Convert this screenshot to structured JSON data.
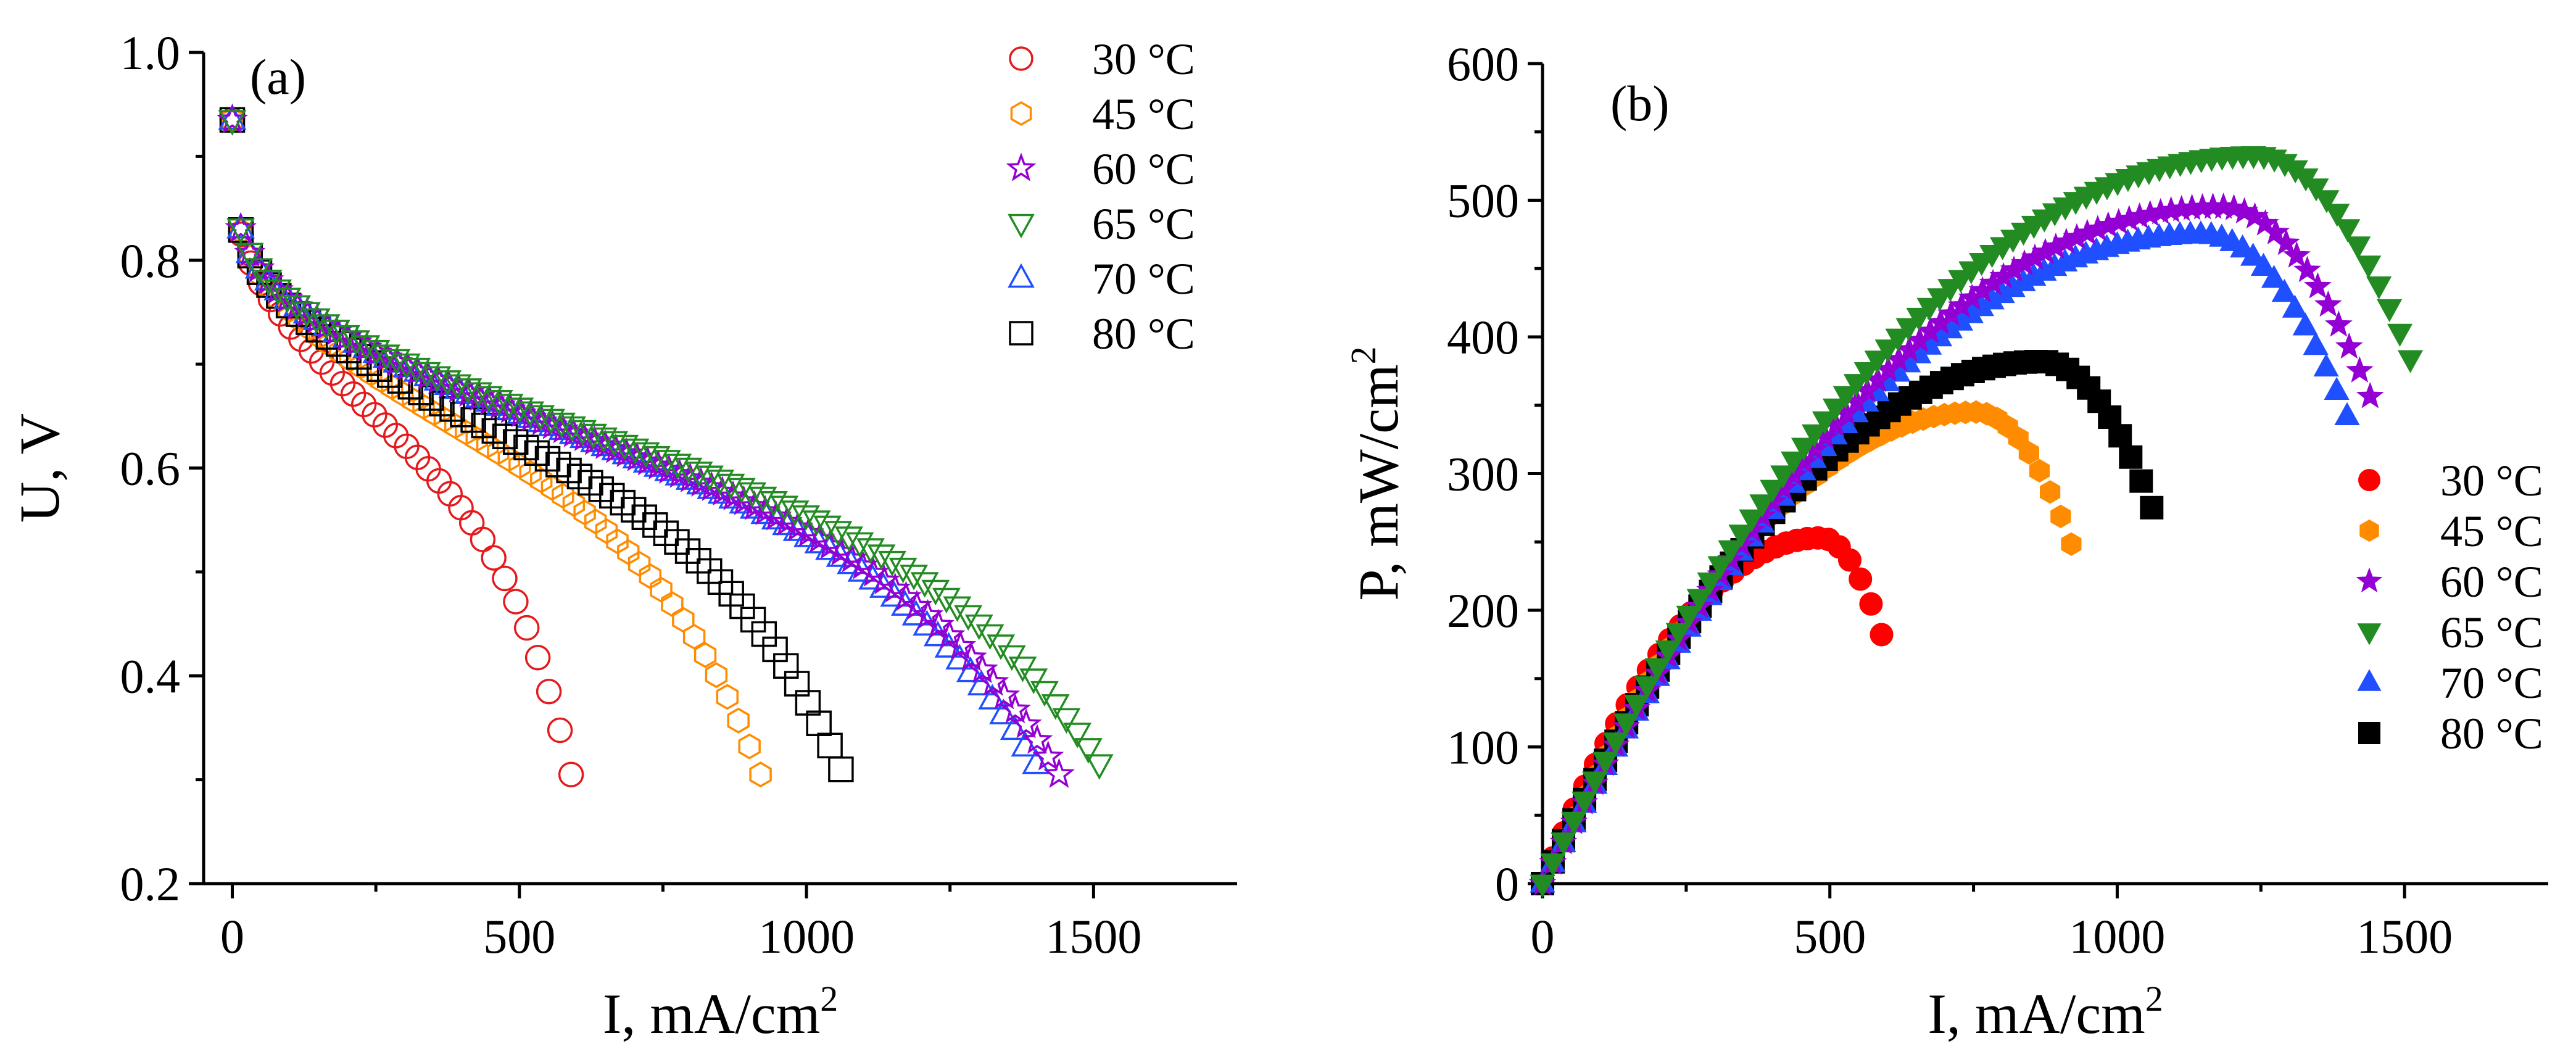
{
  "chart_data": [
    {
      "type": "scatter",
      "panel_label": "(a)",
      "xlabel": "I, mA/cm",
      "xlabel_sup": "2",
      "ylabel": "U, V",
      "xlim": [
        -50,
        1750
      ],
      "ylim": [
        0.2,
        1.0
      ],
      "xticks": [
        0,
        500,
        1000,
        1500
      ],
      "xtick_labels": [
        "0",
        "500",
        "1000",
        "1500"
      ],
      "yticks": [
        0.2,
        0.4,
        0.6,
        0.8,
        1.0
      ],
      "ytick_labels": [
        "0.2",
        "0.4",
        "0.6",
        "0.8",
        "1.0"
      ],
      "marker_fill": "open",
      "legend_position": "top-right",
      "series": [
        {
          "name": "30 °C",
          "color": "#e41a1c",
          "marker": "circle",
          "imax": 590,
          "umin": 0.305
        },
        {
          "name": "45 °C",
          "color": "#ff8c00",
          "marker": "hexagon",
          "imax": 920,
          "umin": 0.305
        },
        {
          "name": "60 °C",
          "color": "#9400d3",
          "marker": "star",
          "imax": 1440,
          "umin": 0.305
        },
        {
          "name": "65 °C",
          "color": "#228b22",
          "marker": "triangle-down",
          "imax": 1510,
          "umin": 0.315
        },
        {
          "name": "70 °C",
          "color": "#1f4fff",
          "marker": "triangle-up",
          "imax": 1400,
          "umin": 0.315
        },
        {
          "name": "80 °C",
          "color": "#000000",
          "marker": "square",
          "imax": 1060,
          "umin": 0.31
        }
      ]
    },
    {
      "type": "scatter",
      "panel_label": "(b)",
      "xlabel": "I, mA/cm",
      "xlabel_sup": "2",
      "ylabel": "P, mW/cm",
      "ylabel_sup": "2",
      "xlim": [
        0,
        1750
      ],
      "ylim": [
        0,
        600
      ],
      "xticks": [
        0,
        500,
        1000,
        1500
      ],
      "xtick_labels": [
        "0",
        "500",
        "1000",
        "1500"
      ],
      "yticks": [
        0,
        100,
        200,
        300,
        400,
        500,
        600
      ],
      "ytick_labels": [
        "0",
        "100",
        "200",
        "300",
        "400",
        "500",
        "600"
      ],
      "marker_fill": "filled",
      "legend_position": "bottom-right",
      "series": [
        {
          "name": "30 °C",
          "color": "#ff0000",
          "marker": "circle",
          "imax": 590,
          "peak_power": 253
        },
        {
          "name": "45 °C",
          "color": "#ff8c00",
          "marker": "hexagon",
          "imax": 920,
          "peak_power": 345
        },
        {
          "name": "60 °C",
          "color": "#9400d3",
          "marker": "star",
          "imax": 1440,
          "peak_power": 495
        },
        {
          "name": "65 °C",
          "color": "#228b22",
          "marker": "triangle-down",
          "imax": 1510,
          "peak_power": 533
        },
        {
          "name": "70 °C",
          "color": "#1f4fff",
          "marker": "triangle-up",
          "imax": 1400,
          "peak_power": 475
        },
        {
          "name": "80 °C",
          "color": "#000000",
          "marker": "square",
          "imax": 1060,
          "peak_power": 382
        }
      ]
    }
  ]
}
